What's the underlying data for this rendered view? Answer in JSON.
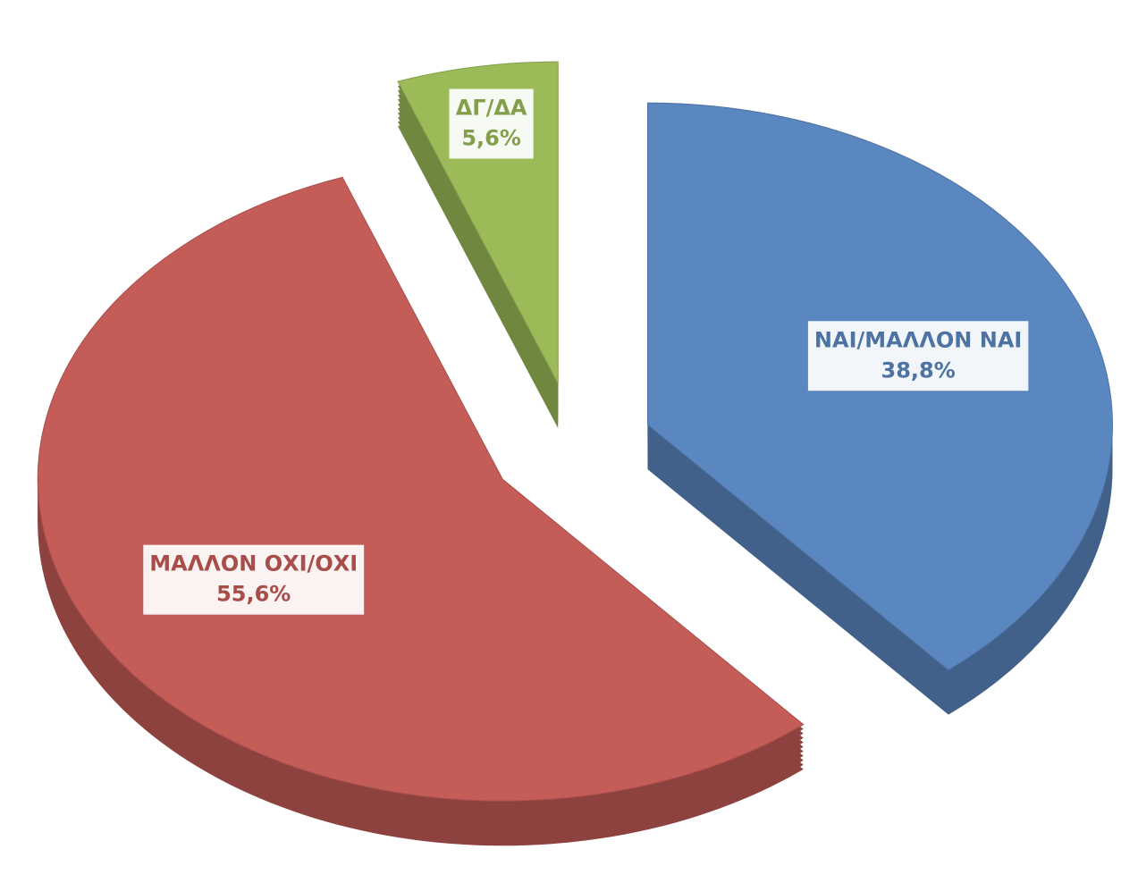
{
  "chart_data": {
    "type": "pie",
    "categories": [
      "ΝΑΙ/ΜΑΛΛΟΝ ΝΑΙ",
      "ΜΑΛΛΟΝ ΟΧΙ/ΟΧΙ",
      "ΔΓ/ΔΑ"
    ],
    "values": [
      38.8,
      55.6,
      5.6
    ],
    "value_labels": [
      "38,8%",
      "55,6%",
      "5,6%"
    ],
    "colors": [
      "#5b87c0",
      "#c45c58",
      "#9bbb59"
    ]
  }
}
